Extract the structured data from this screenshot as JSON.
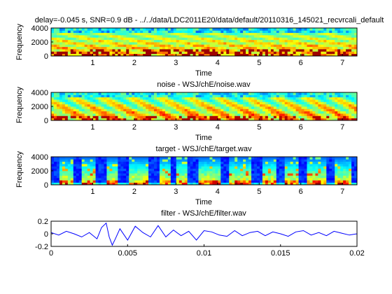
{
  "chart_data": [
    {
      "type": "heatmap",
      "title": "delay=-0.045 s, SNR=0.9 dB - ../../data/LDC2011E20/data/default/20110316_145021_recvrcali_default",
      "xlabel": "Time",
      "ylabel": "Frequency",
      "xlim": [
        0,
        7.35
      ],
      "ylim": [
        0,
        4000
      ],
      "x_ticks": [
        "1",
        "2",
        "3",
        "4",
        "5",
        "6",
        "7"
      ],
      "y_ticks": [
        "0",
        "2000",
        "4000"
      ],
      "x_tick_values": [
        1,
        2,
        3,
        4,
        5,
        6,
        7
      ],
      "y_tick_values": [
        0,
        2000,
        4000
      ],
      "colormap": "jet",
      "profile": "mix"
    },
    {
      "type": "heatmap",
      "title": "noise - WSJ/chE/noise.wav",
      "xlabel": "Time",
      "ylabel": "Frequency",
      "xlim": [
        0,
        7.35
      ],
      "ylim": [
        0,
        4000
      ],
      "x_ticks": [
        "1",
        "2",
        "3",
        "4",
        "5",
        "6",
        "7"
      ],
      "y_ticks": [
        "0",
        "2000",
        "4000"
      ],
      "x_tick_values": [
        1,
        2,
        3,
        4,
        5,
        6,
        7
      ],
      "y_tick_values": [
        0,
        2000,
        4000
      ],
      "colormap": "jet",
      "profile": "noise"
    },
    {
      "type": "heatmap",
      "title": "target - WSJ/chE/target.wav",
      "xlabel": "Time",
      "ylabel": "Frequency",
      "xlim": [
        0,
        7.35
      ],
      "ylim": [
        0,
        4000
      ],
      "x_ticks": [
        "1",
        "2",
        "3",
        "4",
        "5",
        "6",
        "7"
      ],
      "y_ticks": [
        "0",
        "2000",
        "4000"
      ],
      "x_tick_values": [
        1,
        2,
        3,
        4,
        5,
        6,
        7
      ],
      "y_tick_values": [
        0,
        2000,
        4000
      ],
      "colormap": "jet",
      "profile": "speech"
    },
    {
      "type": "line",
      "title": "filter - WSJ/chE/filter.wav",
      "xlabel": "",
      "ylabel": "",
      "xlim": [
        0,
        0.02
      ],
      "ylim": [
        -0.2,
        0.2
      ],
      "x_ticks": [
        "0",
        "0.005",
        "0.01",
        "0.015",
        "0.02"
      ],
      "y_ticks": [
        "-0.2",
        "0",
        "0.2"
      ],
      "x_tick_values": [
        0,
        0.005,
        0.01,
        0.015,
        0.02
      ],
      "y_tick_values": [
        -0.2,
        0,
        0.2
      ],
      "color": "#0000ff",
      "series": [
        {
          "x": [
            0,
            0.0005,
            0.001,
            0.0015,
            0.002,
            0.0025,
            0.003,
            0.0033,
            0.0036,
            0.0038,
            0.004,
            0.0042,
            0.0045,
            0.005,
            0.0055,
            0.006,
            0.0065,
            0.007,
            0.0075,
            0.008,
            0.0085,
            0.009,
            0.0095,
            0.01,
            0.0105,
            0.011,
            0.0115,
            0.012,
            0.0125,
            0.013,
            0.0135,
            0.014,
            0.0145,
            0.015,
            0.0155,
            0.016,
            0.0165,
            0.017,
            0.0175,
            0.018,
            0.0185,
            0.019,
            0.0195,
            0.02
          ],
          "y": [
            0.02,
            -0.02,
            0.04,
            0.0,
            -0.05,
            0.02,
            -0.08,
            0.1,
            0.17,
            -0.05,
            -0.18,
            -0.08,
            0.08,
            -0.1,
            0.12,
            0.02,
            -0.05,
            0.13,
            -0.05,
            0.06,
            -0.03,
            0.04,
            -0.1,
            0.05,
            0.03,
            -0.02,
            -0.04,
            0.05,
            -0.03,
            0.02,
            0.04,
            -0.03,
            0.03,
            0.0,
            -0.04,
            0.03,
            0.05,
            -0.02,
            0.02,
            -0.03,
            0.04,
            0.01,
            -0.02,
            0.0
          ]
        }
      ]
    }
  ]
}
